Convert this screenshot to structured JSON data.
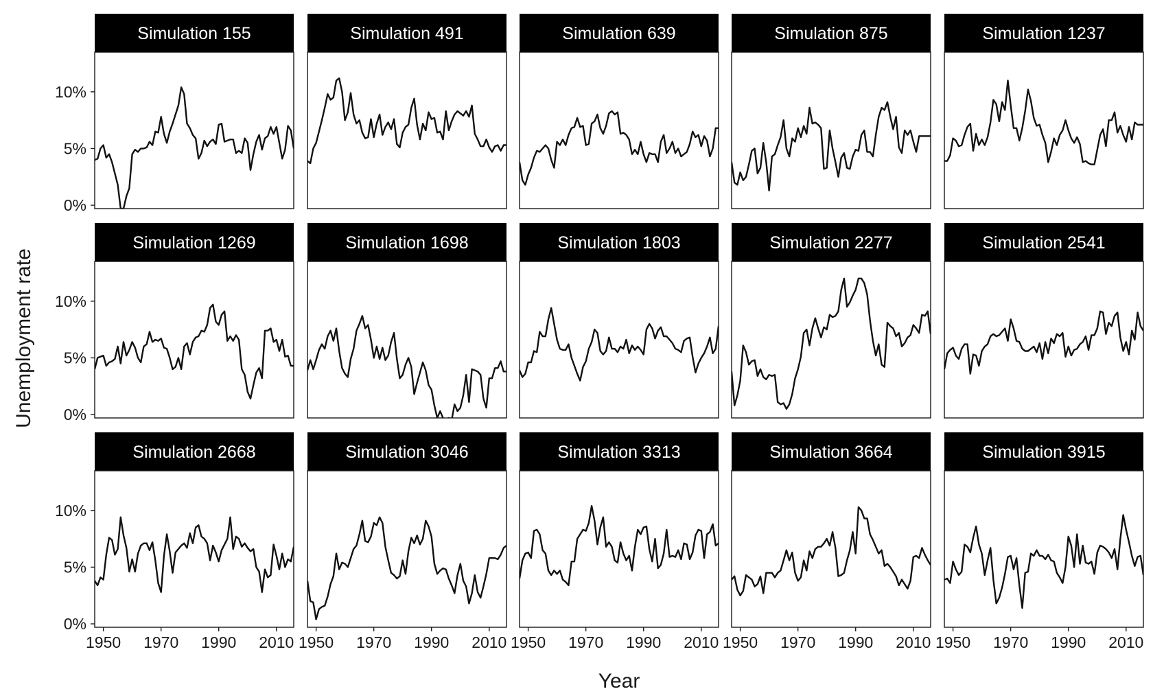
{
  "chart_data": {
    "type": "line",
    "facet": "grid 3x5",
    "xlabel": "Year",
    "ylabel": "Unemployment rate",
    "xlim": [
      1947,
      2016
    ],
    "ylim": [
      -0.3,
      13.5
    ],
    "xticks": [
      1950,
      1970,
      1990,
      2010
    ],
    "yticks": [
      0,
      5,
      10
    ],
    "ytick_format": "percent",
    "line_color": "#111111",
    "strip_color": "#000000",
    "strip_text_color": "#ffffff",
    "x": [
      1947,
      1948,
      1949,
      1950,
      1951,
      1952,
      1953,
      1954,
      1955,
      1956,
      1957,
      1958,
      1959,
      1960,
      1961,
      1962,
      1963,
      1964,
      1965,
      1966,
      1967,
      1968,
      1969,
      1970,
      1971,
      1972,
      1973,
      1974,
      1975,
      1976,
      1977,
      1978,
      1979,
      1980,
      1981,
      1982,
      1983,
      1984,
      1985,
      1986,
      1987,
      1988,
      1989,
      1990,
      1991,
      1992,
      1993,
      1994,
      1995,
      1996,
      1997,
      1998,
      1999,
      2000,
      2001,
      2002,
      2003,
      2004,
      2005,
      2006,
      2007,
      2008,
      2009,
      2010,
      2011,
      2012,
      2013,
      2014,
      2015,
      2016
    ],
    "series": [
      {
        "name": "Simulation 155",
        "values": [
          4.0,
          4.1,
          5.0,
          5.3,
          4.2,
          4.5,
          3.8,
          2.8,
          1.8,
          -0.3,
          -0.3,
          0.8,
          1.5,
          4.5,
          4.9,
          4.7,
          5.0,
          5.0,
          5.1,
          5.6,
          5.3,
          6.5,
          6.4,
          7.8,
          6.3,
          5.5,
          6.5,
          7.2,
          8.0,
          8.8,
          10.4,
          9.8,
          7.2,
          6.8,
          6.2,
          5.9,
          4.1,
          4.6,
          5.7,
          5.2,
          5.6,
          5.8,
          5.4,
          7.1,
          7.2,
          5.6,
          5.7,
          5.8,
          5.8,
          4.6,
          4.8,
          4.6,
          5.9,
          5.5,
          3.1,
          4.5,
          5.6,
          6.2,
          4.9,
          5.9,
          6.1,
          6.9,
          6.3,
          6.9,
          5.5,
          4.1,
          4.9,
          7.0,
          6.6,
          5.0
        ]
      },
      {
        "name": "Simulation 491",
        "values": [
          3.9,
          3.7,
          5.0,
          5.5,
          6.5,
          7.5,
          8.6,
          9.8,
          9.3,
          9.5,
          11.0,
          11.2,
          10.0,
          7.5,
          8.2,
          9.9,
          8.0,
          7.2,
          7.5,
          6.4,
          5.9,
          6.0,
          7.6,
          6.0,
          7.2,
          8.0,
          6.2,
          6.9,
          7.3,
          6.7,
          7.6,
          5.4,
          5.1,
          6.4,
          6.9,
          7.1,
          8.6,
          9.4,
          7.1,
          5.8,
          7.2,
          6.6,
          8.2,
          7.6,
          7.7,
          6.4,
          6.5,
          5.8,
          8.3,
          6.6,
          7.4,
          8.0,
          8.3,
          8.1,
          7.9,
          8.3,
          7.8,
          8.8,
          6.3,
          5.8,
          5.2,
          5.2,
          5.8,
          5.1,
          4.7,
          5.2,
          5.3,
          4.8,
          5.3,
          5.3
        ]
      },
      {
        "name": "Simulation 639",
        "values": [
          3.8,
          2.2,
          1.8,
          2.7,
          3.3,
          4.2,
          4.8,
          4.7,
          5.0,
          5.3,
          5.0,
          4.0,
          3.3,
          5.6,
          5.3,
          5.8,
          5.3,
          6.2,
          6.8,
          6.9,
          7.7,
          6.9,
          7.0,
          5.3,
          5.4,
          7.2,
          7.4,
          8.0,
          6.8,
          6.3,
          7.0,
          8.1,
          8.3,
          8.0,
          8.2,
          6.3,
          6.4,
          6.2,
          5.8,
          4.5,
          4.9,
          4.5,
          5.6,
          4.5,
          3.8,
          4.6,
          4.5,
          4.5,
          3.8,
          5.6,
          6.2,
          4.6,
          5.0,
          5.6,
          4.6,
          5.0,
          4.3,
          4.5,
          4.7,
          5.4,
          6.5,
          6.0,
          6.2,
          5.2,
          6.1,
          5.7,
          4.3,
          5.0,
          6.8,
          6.8
        ]
      },
      {
        "name": "Simulation 875",
        "values": [
          3.8,
          2.0,
          1.8,
          2.9,
          2.2,
          2.5,
          3.6,
          4.8,
          5.0,
          2.8,
          3.3,
          5.5,
          3.8,
          1.3,
          4.3,
          4.5,
          5.3,
          6.0,
          7.5,
          5.0,
          4.3,
          5.9,
          5.6,
          6.8,
          6.0,
          7.0,
          6.3,
          8.6,
          7.2,
          7.3,
          7.1,
          6.8,
          3.2,
          3.3,
          6.6,
          5.0,
          3.8,
          2.5,
          4.2,
          4.6,
          3.3,
          3.2,
          4.3,
          4.9,
          4.8,
          6.2,
          6.6,
          4.7,
          4.7,
          4.3,
          6.2,
          7.8,
          8.6,
          8.4,
          9.1,
          7.8,
          6.7,
          7.8,
          5.1,
          4.6,
          6.6,
          6.2,
          6.6,
          5.6,
          4.7,
          6.1,
          6.1,
          6.1,
          6.1,
          6.1
        ]
      },
      {
        "name": "Simulation 1237",
        "values": [
          3.9,
          3.9,
          4.4,
          5.9,
          5.7,
          5.2,
          5.3,
          6.2,
          6.9,
          7.2,
          4.8,
          6.3,
          5.3,
          5.8,
          5.3,
          6.0,
          7.3,
          9.3,
          8.9,
          7.4,
          9.1,
          8.4,
          11.0,
          8.8,
          6.8,
          6.8,
          5.7,
          6.8,
          8.3,
          10.2,
          9.2,
          7.7,
          7.0,
          7.1,
          6.2,
          5.5,
          3.8,
          4.7,
          5.9,
          5.3,
          6.2,
          6.6,
          7.5,
          6.6,
          5.9,
          5.5,
          6.0,
          5.4,
          3.8,
          3.9,
          3.7,
          3.6,
          3.6,
          4.9,
          6.2,
          6.7,
          5.2,
          7.5,
          7.5,
          8.2,
          6.4,
          7.0,
          6.2,
          5.6,
          6.9,
          5.8,
          7.3,
          7.1,
          7.1,
          7.1
        ]
      },
      {
        "name": "Simulation 1269",
        "values": [
          4.0,
          5.0,
          5.1,
          5.2,
          4.3,
          4.6,
          4.7,
          4.9,
          6.0,
          4.5,
          6.4,
          5.2,
          5.7,
          6.4,
          5.9,
          5.0,
          4.6,
          6.0,
          6.2,
          7.3,
          6.4,
          6.6,
          6.5,
          6.7,
          5.9,
          5.8,
          5.0,
          4.0,
          4.2,
          5.0,
          4.0,
          6.0,
          6.3,
          5.3,
          6.4,
          6.8,
          6.9,
          7.4,
          7.3,
          7.9,
          9.4,
          9.7,
          8.2,
          7.9,
          8.8,
          9.1,
          6.5,
          6.9,
          6.5,
          7.0,
          6.6,
          4.0,
          3.5,
          2.0,
          1.4,
          2.6,
          3.7,
          4.1,
          3.2,
          7.4,
          7.4,
          7.6,
          6.4,
          6.6,
          5.6,
          6.6,
          5.1,
          5.2,
          4.3,
          4.3
        ]
      },
      {
        "name": "Simulation 1698",
        "values": [
          3.9,
          4.8,
          4.0,
          4.8,
          5.7,
          6.2,
          5.8,
          6.9,
          7.4,
          6.5,
          7.6,
          5.6,
          4.1,
          3.6,
          3.3,
          4.9,
          5.8,
          7.4,
          8.0,
          8.7,
          7.6,
          7.9,
          6.6,
          5.0,
          6.0,
          4.9,
          5.9,
          4.8,
          5.2,
          6.4,
          7.2,
          4.9,
          3.2,
          3.5,
          4.4,
          5.0,
          4.2,
          1.8,
          2.8,
          3.7,
          4.6,
          3.9,
          2.6,
          2.2,
          0.8,
          -0.3,
          0.3,
          -0.3,
          -0.5,
          -0.3,
          -0.5,
          0.9,
          0.3,
          0.6,
          1.7,
          3.5,
          1.1,
          4.0,
          3.9,
          3.8,
          3.5,
          1.4,
          0.6,
          3.2,
          3.2,
          4.1,
          4.1,
          4.7,
          3.8,
          3.8
        ]
      },
      {
        "name": "Simulation 1803",
        "values": [
          3.9,
          3.3,
          3.6,
          4.6,
          4.6,
          5.6,
          5.5,
          7.3,
          6.9,
          6.9,
          8.4,
          9.4,
          8.0,
          6.6,
          5.8,
          5.7,
          5.7,
          6.2,
          5.0,
          4.3,
          3.6,
          3.0,
          4.2,
          4.7,
          5.8,
          6.4,
          7.5,
          7.2,
          5.6,
          5.3,
          5.6,
          6.8,
          5.8,
          5.8,
          5.5,
          6.0,
          5.8,
          6.6,
          5.4,
          6.1,
          5.7,
          6.0,
          5.7,
          5.3,
          7.5,
          8.0,
          7.6,
          6.7,
          7.4,
          7.7,
          6.9,
          6.9,
          6.6,
          6.3,
          5.8,
          5.7,
          5.5,
          6.5,
          6.7,
          6.8,
          5.1,
          3.7,
          4.5,
          5.0,
          5.4,
          6.0,
          6.8,
          5.4,
          5.8,
          7.8
        ]
      },
      {
        "name": "Simulation 2277",
        "values": [
          3.8,
          0.8,
          1.7,
          3.0,
          6.1,
          5.5,
          4.4,
          4.7,
          4.8,
          3.4,
          4.0,
          3.3,
          3.1,
          3.5,
          3.4,
          3.5,
          1.1,
          0.9,
          1.0,
          0.5,
          0.9,
          1.8,
          3.2,
          4.0,
          5.1,
          7.2,
          7.5,
          6.1,
          7.6,
          8.5,
          7.6,
          6.8,
          7.7,
          7.5,
          8.8,
          8.6,
          8.7,
          9.1,
          11.0,
          12.0,
          9.5,
          9.9,
          10.5,
          11.0,
          12.0,
          12.0,
          11.6,
          10.6,
          8.3,
          6.5,
          5.2,
          6.2,
          4.4,
          4.2,
          8.1,
          7.8,
          7.6,
          6.9,
          7.2,
          6.0,
          6.3,
          6.8,
          7.0,
          7.9,
          7.6,
          7.2,
          8.8,
          8.7,
          9.1,
          7.1
        ]
      },
      {
        "name": "Simulation 2541",
        "values": [
          4.0,
          5.4,
          5.7,
          5.9,
          5.2,
          4.9,
          5.8,
          6.2,
          6.2,
          3.6,
          5.3,
          5.2,
          4.3,
          5.6,
          6.0,
          6.2,
          6.9,
          7.1,
          6.9,
          7.0,
          7.3,
          7.6,
          6.5,
          8.4,
          7.6,
          6.5,
          6.4,
          5.8,
          5.6,
          5.6,
          5.8,
          6.0,
          5.5,
          6.3,
          4.9,
          6.4,
          5.4,
          6.7,
          6.3,
          7.1,
          6.9,
          7.2,
          5.1,
          6.0,
          5.2,
          5.7,
          5.8,
          6.2,
          6.4,
          6.9,
          5.7,
          7.0,
          7.0,
          7.6,
          9.1,
          9.0,
          7.1,
          8.1,
          7.8,
          8.7,
          9.0,
          6.8,
          5.6,
          6.4,
          5.3,
          7.4,
          6.6,
          9.0,
          7.8,
          7.4
        ]
      },
      {
        "name": "Simulation 2668",
        "values": [
          3.8,
          3.4,
          4.1,
          3.9,
          6.1,
          7.6,
          7.4,
          6.1,
          6.6,
          9.4,
          7.8,
          6.7,
          4.6,
          5.7,
          4.6,
          6.2,
          6.9,
          7.1,
          7.1,
          6.5,
          7.2,
          5.6,
          3.6,
          2.8,
          6.0,
          7.9,
          6.4,
          4.5,
          6.3,
          6.6,
          6.9,
          7.1,
          6.7,
          8.0,
          7.1,
          8.5,
          8.7,
          7.7,
          7.5,
          7.1,
          5.6,
          6.9,
          6.3,
          5.5,
          6.5,
          7.0,
          7.5,
          9.4,
          6.6,
          7.7,
          7.5,
          6.8,
          7.1,
          6.7,
          6.4,
          6.6,
          5.0,
          4.6,
          2.8,
          4.8,
          4.1,
          4.3,
          7.0,
          6.0,
          4.8,
          6.2,
          5.0,
          5.7,
          5.5,
          6.8
        ]
      },
      {
        "name": "Simulation 3046",
        "values": [
          3.8,
          2.0,
          1.9,
          0.4,
          1.3,
          1.5,
          1.6,
          2.4,
          3.5,
          4.2,
          6.2,
          4.8,
          5.4,
          5.3,
          5.0,
          5.8,
          6.6,
          6.9,
          7.9,
          9.1,
          7.3,
          7.2,
          7.7,
          8.9,
          8.7,
          9.4,
          8.9,
          6.8,
          5.6,
          4.5,
          4.3,
          4.0,
          4.2,
          5.6,
          4.4,
          6.4,
          7.6,
          7.1,
          7.8,
          7.0,
          7.5,
          9.1,
          8.6,
          7.7,
          5.3,
          4.4,
          4.7,
          4.9,
          4.8,
          4.0,
          3.4,
          2.7,
          4.3,
          5.3,
          3.8,
          3.3,
          1.8,
          2.7,
          4.3,
          2.8,
          2.3,
          3.3,
          4.4,
          5.8,
          5.8,
          5.8,
          5.7,
          6.1,
          6.7,
          6.9
        ]
      },
      {
        "name": "Simulation 3313",
        "values": [
          4.0,
          5.6,
          6.2,
          6.3,
          5.8,
          8.2,
          8.3,
          7.9,
          6.5,
          6.2,
          4.7,
          4.3,
          4.7,
          4.4,
          4.7,
          3.9,
          3.7,
          3.4,
          5.5,
          5.5,
          7.5,
          7.9,
          8.3,
          8.2,
          8.9,
          10.4,
          9.1,
          7.0,
          8.5,
          9.4,
          6.8,
          7.2,
          6.8,
          5.6,
          5.4,
          7.2,
          6.2,
          5.6,
          6.0,
          4.7,
          6.8,
          8.3,
          7.9,
          8.5,
          8.6,
          6.6,
          5.5,
          7.5,
          4.9,
          5.2,
          6.2,
          8.3,
          5.9,
          6.0,
          5.9,
          6.5,
          5.7,
          7.1,
          7.0,
          5.7,
          6.3,
          7.8,
          8.3,
          8.2,
          5.8,
          7.9,
          8.1,
          8.8,
          6.9,
          7.1
        ]
      },
      {
        "name": "Simulation 3664",
        "values": [
          3.9,
          4.2,
          3.0,
          2.5,
          2.9,
          4.3,
          4.1,
          3.9,
          3.3,
          3.5,
          4.2,
          2.7,
          4.5,
          4.5,
          4.5,
          4.1,
          4.5,
          4.7,
          5.6,
          6.5,
          5.6,
          6.3,
          4.5,
          3.8,
          4.1,
          5.6,
          4.7,
          6.4,
          5.8,
          6.6,
          6.8,
          6.8,
          7.1,
          7.5,
          6.9,
          8.1,
          6.7,
          4.2,
          4.3,
          4.5,
          5.6,
          6.5,
          8.1,
          6.2,
          10.3,
          10.0,
          9.3,
          9.3,
          7.9,
          7.4,
          6.8,
          6.2,
          6.5,
          5.1,
          5.3,
          5.0,
          4.6,
          4.2,
          3.4,
          3.9,
          3.5,
          3.1,
          3.8,
          5.9,
          6.0,
          5.8,
          6.7,
          6.1,
          5.6,
          5.2
        ]
      },
      {
        "name": "Simulation 3915",
        "values": [
          3.9,
          4.0,
          3.6,
          5.5,
          4.8,
          4.3,
          4.6,
          7.0,
          6.8,
          6.3,
          7.6,
          8.6,
          7.0,
          6.2,
          4.3,
          5.6,
          6.7,
          3.9,
          1.8,
          2.3,
          3.2,
          4.4,
          5.9,
          6.0,
          4.8,
          5.8,
          3.4,
          1.4,
          4.5,
          4.6,
          6.2,
          6.0,
          6.5,
          6.0,
          6.0,
          5.7,
          6.1,
          5.6,
          5.5,
          4.5,
          4.1,
          3.6,
          5.0,
          7.7,
          6.9,
          5.0,
          7.9,
          5.3,
          6.9,
          5.4,
          5.3,
          5.5,
          4.4,
          6.3,
          6.9,
          6.8,
          6.6,
          6.3,
          5.8,
          6.6,
          4.8,
          7.5,
          9.6,
          8.3,
          7.2,
          6.0,
          5.1,
          5.9,
          6.0,
          4.3
        ]
      }
    ]
  }
}
